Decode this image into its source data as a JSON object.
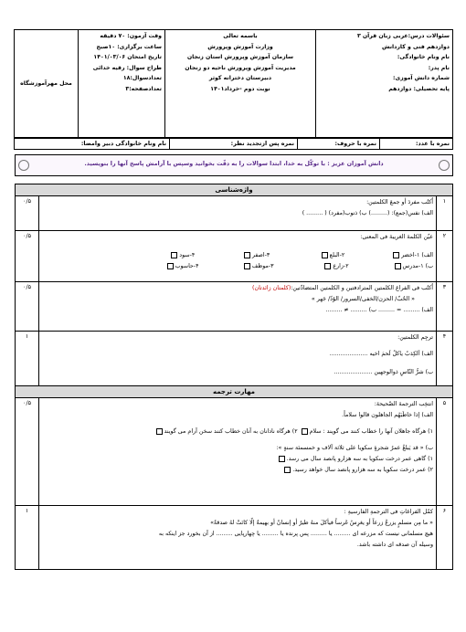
{
  "header": {
    "right": [
      "سئوالات درس:عربی زبان قرآن ۳",
      "دوازدهم فنی و کاردانش",
      "نام ونام خانوادگی:",
      "نام پدر:",
      "شماره دانش آموزی:",
      "پایه تحصیلی: دوازدهم"
    ],
    "center": [
      "باسمه تعالی",
      "وزارت آموزش وپرورش",
      "سازمان آموزش وپرورش استان زنجان",
      "مدیریت آموزش وپرورش ناحیه دو زنجان",
      "دبیرستان دخترانه  کوثر",
      "نوبت دوم -خرداد۱۴۰۱"
    ],
    "left": [
      "وقت آزمون: ۷۰ دقیقه",
      "ساعت برگزاری: ۱۰صبح",
      "تاریخ امتحان ۱۴۰۱/۰۳/۰۶",
      "طراح سوال: رقیه خدائی",
      "تعدادسوال:۱۸",
      "تعدادصفحه:۳"
    ],
    "stamp": "محل مهرآموزشگاه"
  },
  "grades": [
    "نمره با عدد:",
    "نمره با حروف:",
    "نمره پس ازتجدید نظر:",
    "نام ونام خانوادگی دبیر وامضا:"
  ],
  "instruction": "دانش آموزان عزیز :  با توکّل به خدا، ابتدا سوالات را به دقّت بخوانید وسپس با آرامش پاسخ آنها را بنویسید.",
  "sections": [
    "واژه‌شناسی",
    "مهارت ترجمه"
  ],
  "questions": [
    {
      "number": "۱",
      "score": "۰/۵",
      "prompt": "اُکتُب مفردَ أو جمعَ الکلمتین:",
      "lines": [
        "الف) نفس(جمع): (.........)    ب) ذنوب(مفرد) ( ......... )"
      ]
    },
    {
      "number": "۲",
      "score": "۰/۵",
      "prompt": "عیّن الکلمةَ الغریبةَ فی المعنی:",
      "rows": [
        {
          "label": "الف)",
          "options": [
            "۱-اخضر",
            "۲-البلع",
            "۳-اصفر",
            "۴-سود"
          ]
        },
        {
          "label": "ب)",
          "options": [
            "۱-مدرس",
            "۲-زارع",
            "۳-موظف",
            "۴-حاسوب"
          ]
        }
      ]
    },
    {
      "number": "۳",
      "score": "۰/۵",
      "prompt": "اُکتُب فی الفراغ الکلمتین المترادفتین و الکلمتین المتضادّتین:",
      "note": "(کلمتان زائدتان)",
      "lines": [
        "« الحُبّ/ الحزن/الخفی/السرور/ الوُدّ/ جَهر »",
        "الف) ......... = .........          ب) ......... ≠ ........."
      ]
    },
    {
      "number": "۴",
      "score": "۱",
      "prompt": "ترجِم الکلمتین:",
      "lines": [
        "الف) اَلکِذبُ یاکلُ لَحمَ اخیه  .....................",
        "ب) شرُّ النّاسِ ذوالوجهین  ....................."
      ]
    },
    {
      "number": "۵",
      "score": "۰/۵",
      "prompt": "انتخِب الترجمةَ الصّحیحةَ:",
      "lines": [
        "الف) إذا خاطَبَهُم الجاهلون قالوا سلاماً.",
        "۱) هرگاه جاهلان آنها را خطاب کنند می گویند : سلام",
        "۲) هرگاه نادانان به آنان خطاب کنند سخن آرام می گویند",
        "ب) « قد یَبلغُ عمرُ شجرةٍ سکویا علی ثلاثة آلاف و خمسمئة سنةٍ »:",
        "۱) گاهی عمر درخت سکویا به سه هزارو پانصد سال می رسد.",
        "۲) عمر درخت سکویا به سه هزارو پانصد سال خواهد رسید."
      ]
    },
    {
      "number": "۶",
      "score": "۱",
      "prompt": "کمّل الفراغاتِ فی الترجمةِ الفارسیةِ :",
      "lines": [
        "« ما مِن مسلمٍ یزرعُ زرعاً أو یغرِسُ غَرساً فیأکلَ منهُ طیرٌ أو إنسانٌ أو بهیمةٌ إلّا کانَتْ لهُ صدقةٌ»",
        "هیچ مسلمانی نیست که مزرعه ای ......... یا ......... پس پرنده یا ......... یا چهارپایی ......... از آن بخورد جز اینکه به",
        "وسیله آن صدقه ای داشته باشد."
      ]
    }
  ]
}
